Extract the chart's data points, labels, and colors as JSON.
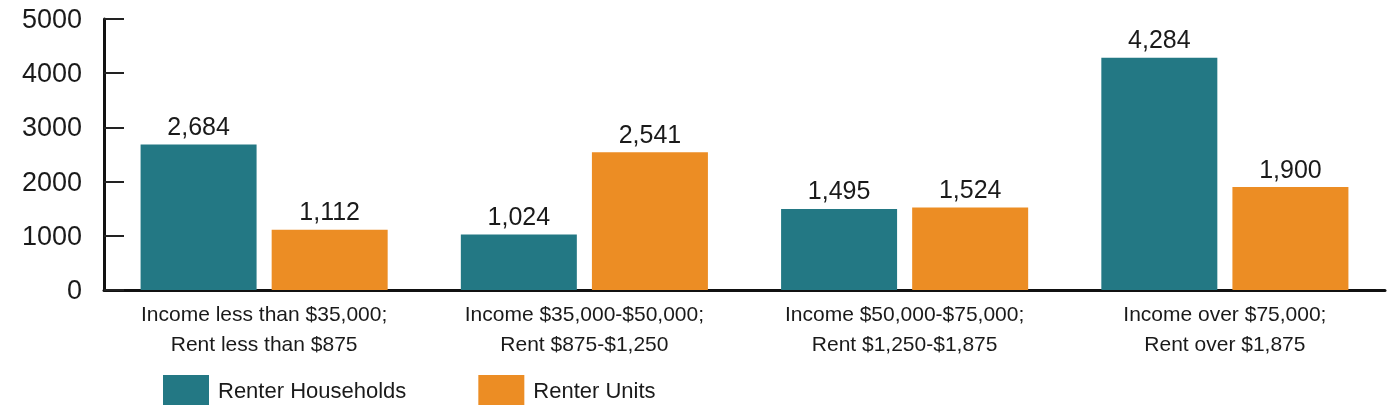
{
  "chart_data": {
    "type": "bar",
    "categories": [
      "Income less than $35,000;\nRent less than $875",
      "Income $35,000-$50,000;\nRent $875-$1,250",
      "Income $50,000-$75,000;\nRent $1,250-$1,875",
      "Income over $75,000;\nRent over $1,875"
    ],
    "series": [
      {
        "name": "Renter Households",
        "color": "#237884",
        "values": [
          2684,
          1024,
          1495,
          4284
        ],
        "value_labels": [
          "2,684",
          "1,024",
          "1,495",
          "4,284"
        ]
      },
      {
        "name": "Renter Units",
        "color": "#ec8d24",
        "values": [
          1112,
          2541,
          1524,
          1900
        ],
        "value_labels": [
          "1,112",
          "2,541",
          "1,524",
          "1,900"
        ]
      }
    ],
    "ylim": [
      0,
      5000
    ],
    "yticks": [
      0,
      1000,
      2000,
      3000,
      4000,
      5000
    ],
    "legend": "bottom left",
    "grid": false
  }
}
